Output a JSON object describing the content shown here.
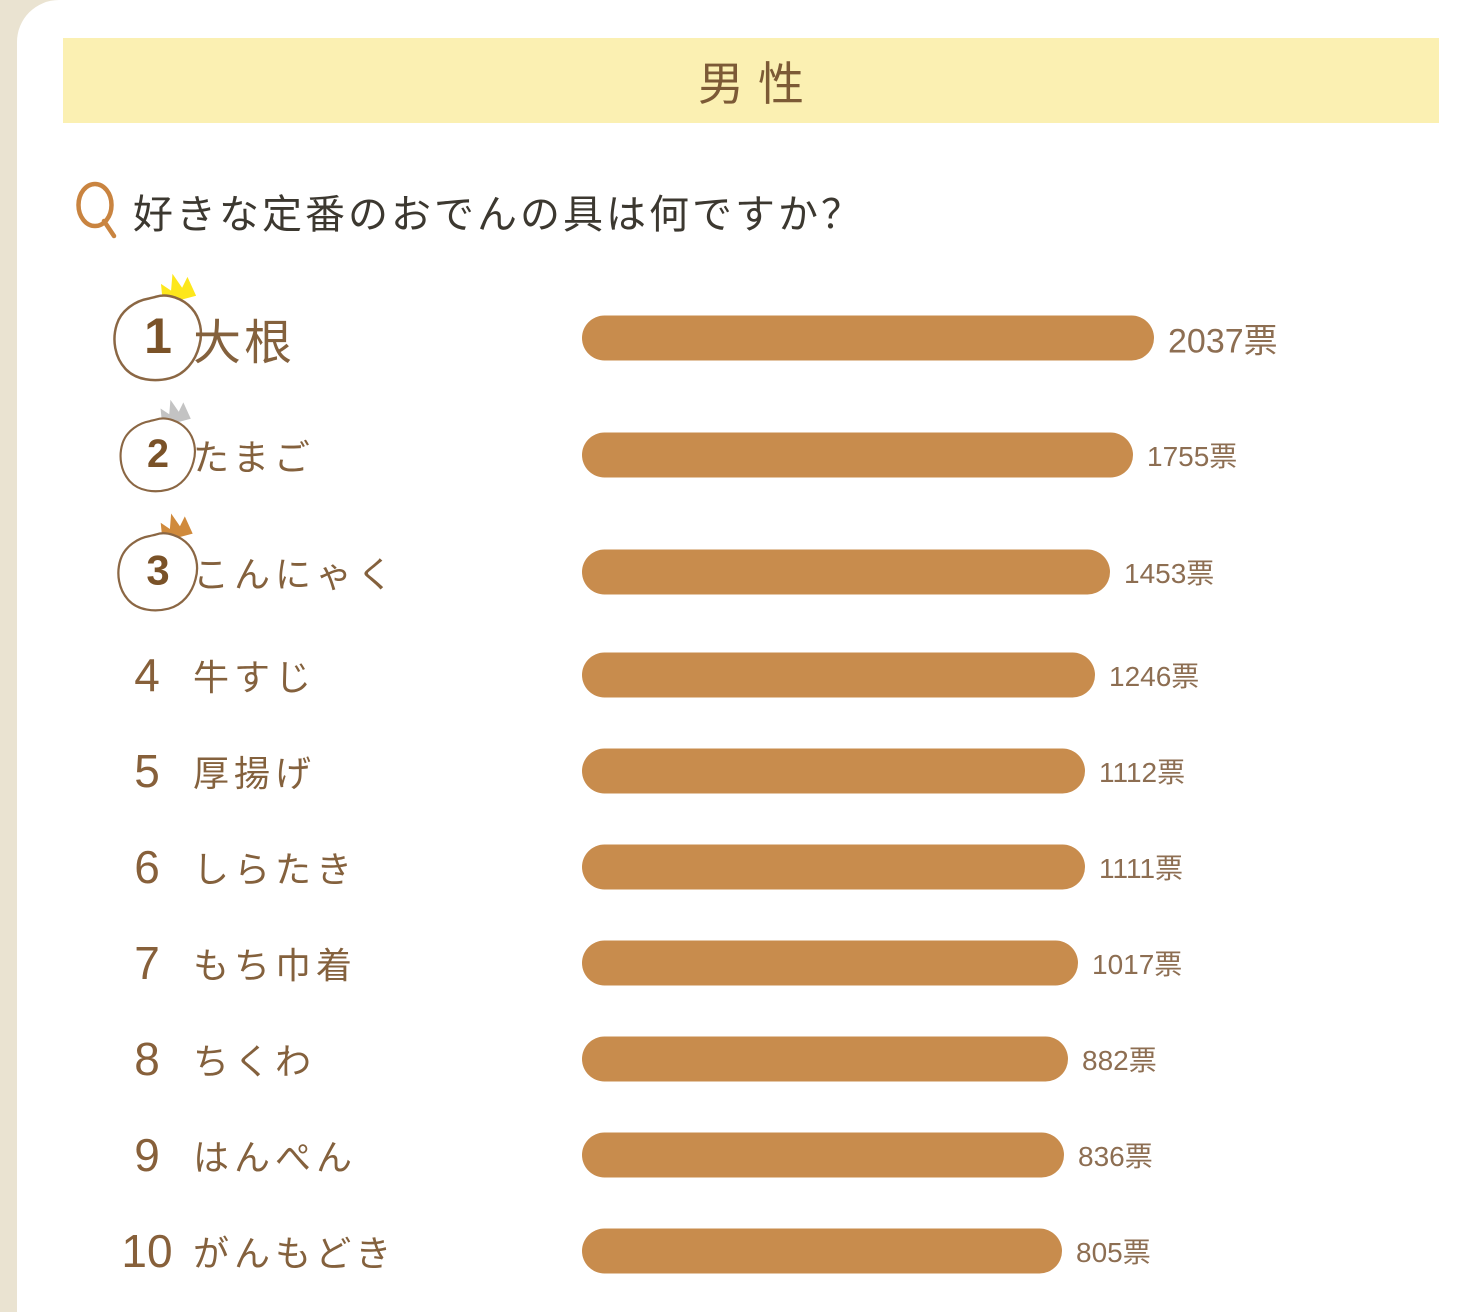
{
  "banner": {
    "title": "男性"
  },
  "question": {
    "text": "好きな定番のおでんの具は何ですか？"
  },
  "chart_data": {
    "type": "bar",
    "orientation": "horizontal",
    "title": "男性",
    "question": "好きな定番のおでんの具は何ですか？",
    "unit": "票",
    "legend": "none",
    "grid": false,
    "value_range_shown": [
      805,
      2037
    ],
    "items": [
      {
        "rank": 1,
        "label": "大根",
        "votes": 2037,
        "votes_label": "2037票",
        "crown": "gold"
      },
      {
        "rank": 2,
        "label": "たまご",
        "votes": 1755,
        "votes_label": "1755票",
        "crown": "silver"
      },
      {
        "rank": 3,
        "label": "こんにゃく",
        "votes": 1453,
        "votes_label": "1453票",
        "crown": "bronze"
      },
      {
        "rank": 4,
        "label": "牛すじ",
        "votes": 1246,
        "votes_label": "1246票",
        "crown": null
      },
      {
        "rank": 5,
        "label": "厚揚げ",
        "votes": 1112,
        "votes_label": "1112票",
        "crown": null
      },
      {
        "rank": 6,
        "label": "しらたき",
        "votes": 1111,
        "votes_label": "1111票",
        "crown": null
      },
      {
        "rank": 7,
        "label": "もち巾着",
        "votes": 1017,
        "votes_label": "1017票",
        "crown": null
      },
      {
        "rank": 8,
        "label": "ちくわ",
        "votes": 882,
        "votes_label": "882票",
        "crown": null
      },
      {
        "rank": 9,
        "label": "はんぺん",
        "votes": 836,
        "votes_label": "836票",
        "crown": null
      },
      {
        "rank": 10,
        "label": "がんもどき",
        "votes": 805,
        "votes_label": "805票",
        "crown": null
      }
    ]
  },
  "colors": {
    "background": "#eae3d1",
    "card": "#ffffff",
    "banner_bg": "#fbf0b2",
    "bar": "#c88c4d",
    "brown_text": "#7c5a36",
    "label_text": "#84613d",
    "value_text": "#8d6e52",
    "question_text": "#3c3830",
    "q_icon": "#c98440",
    "crown_gold": "#fde71c",
    "crown_silver": "#c3c3c3",
    "crown_bronze": "#d08a3c",
    "badge_outline": "#8b6744"
  }
}
